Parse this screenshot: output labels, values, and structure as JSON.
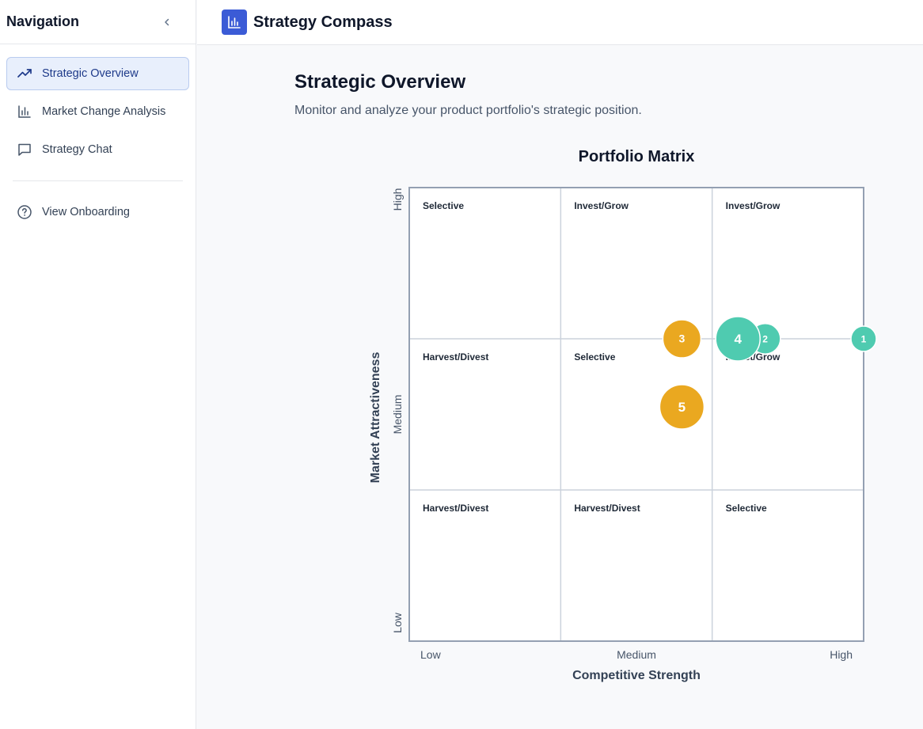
{
  "sidebar": {
    "title": "Navigation",
    "items": [
      {
        "label": "Strategic Overview",
        "icon": "trending-up-icon",
        "active": true
      },
      {
        "label": "Market Change Analysis",
        "icon": "bar-chart-icon",
        "active": false
      },
      {
        "label": "Strategy Chat",
        "icon": "chat-icon",
        "active": false
      }
    ],
    "secondary": [
      {
        "label": "View Onboarding",
        "icon": "help-circle-icon"
      }
    ]
  },
  "header": {
    "app_title": "Strategy Compass",
    "logo_icon": "bar-chart-icon",
    "brand_color": "#3b5bd6"
  },
  "main": {
    "title": "Strategic Overview",
    "subtitle": "Monitor and analyze your product portfolio's strategic position."
  },
  "chart_data": {
    "type": "scatter",
    "title": "Portfolio Matrix",
    "xlabel": "Competitive Strength",
    "ylabel": "Market Attractiveness",
    "x_ticks": [
      "Low",
      "Medium",
      "High"
    ],
    "y_ticks": [
      "Low",
      "Medium",
      "High"
    ],
    "xlim": [
      0,
      3
    ],
    "ylim": [
      0,
      3
    ],
    "grid": true,
    "cells": [
      [
        "Selective",
        "Invest/Grow",
        "Invest/Grow"
      ],
      [
        "Harvest/Divest",
        "Selective",
        "Invest/Grow"
      ],
      [
        "Harvest/Divest",
        "Harvest/Divest",
        "Selective"
      ]
    ],
    "points": [
      {
        "label": "1",
        "x": 3.0,
        "y": 2.0,
        "size": 1,
        "color": "#4fcbb0"
      },
      {
        "label": "2",
        "x": 2.35,
        "y": 2.0,
        "size": 1.2,
        "color": "#4fcbb0"
      },
      {
        "label": "3",
        "x": 1.8,
        "y": 2.0,
        "size": 1.5,
        "color": "#eaa820"
      },
      {
        "label": "4",
        "x": 2.17,
        "y": 2.0,
        "size": 1.75,
        "color": "#4fcbb0"
      },
      {
        "label": "5",
        "x": 1.8,
        "y": 1.55,
        "size": 1.75,
        "color": "#eaa820"
      }
    ]
  }
}
